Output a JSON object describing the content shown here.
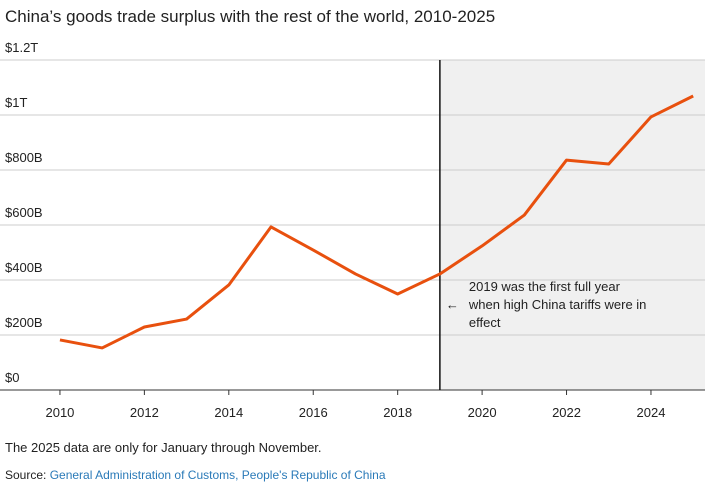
{
  "chart_data": {
    "type": "line",
    "title": "China’s goods trade surplus with the rest of the world, 2010-2025",
    "x": [
      2010,
      2011,
      2012,
      2013,
      2014,
      2015,
      2016,
      2017,
      2018,
      2019,
      2020,
      2021,
      2022,
      2023,
      2024,
      2025
    ],
    "series": [
      {
        "name": "Goods trade surplus",
        "color": "#e8500e",
        "values": [
          182,
          153,
          229,
          258,
          382,
          593,
          509,
          422,
          349,
          422,
          524,
          636,
          836,
          822,
          993,
          1069
        ]
      }
    ],
    "xlim": [
      2008.58,
      2025.28
    ],
    "xticks": [
      2010,
      2012,
      2014,
      2016,
      2018,
      2020,
      2022,
      2024
    ],
    "ylim": [
      0,
      1200
    ],
    "yticks": [
      {
        "value": 0,
        "label": "$0"
      },
      {
        "value": 200,
        "label": "$200B"
      },
      {
        "value": 400,
        "label": "$400B"
      },
      {
        "value": 600,
        "label": "$600B"
      },
      {
        "value": 800,
        "label": "$800B"
      },
      {
        "value": 1000,
        "label": "$1T"
      },
      {
        "value": 1200,
        "label": "$1.2T"
      }
    ],
    "grid": true,
    "highlight_from": 2019,
    "annotation": {
      "arrow": "←",
      "lines": [
        "2019 was the first full year",
        "when high China tariffs were in",
        "effect"
      ]
    },
    "note": "The 2025 data are only for January through November.",
    "source_label": "Source:",
    "source_text": "General Administration of Customs, People's Republic of China"
  }
}
